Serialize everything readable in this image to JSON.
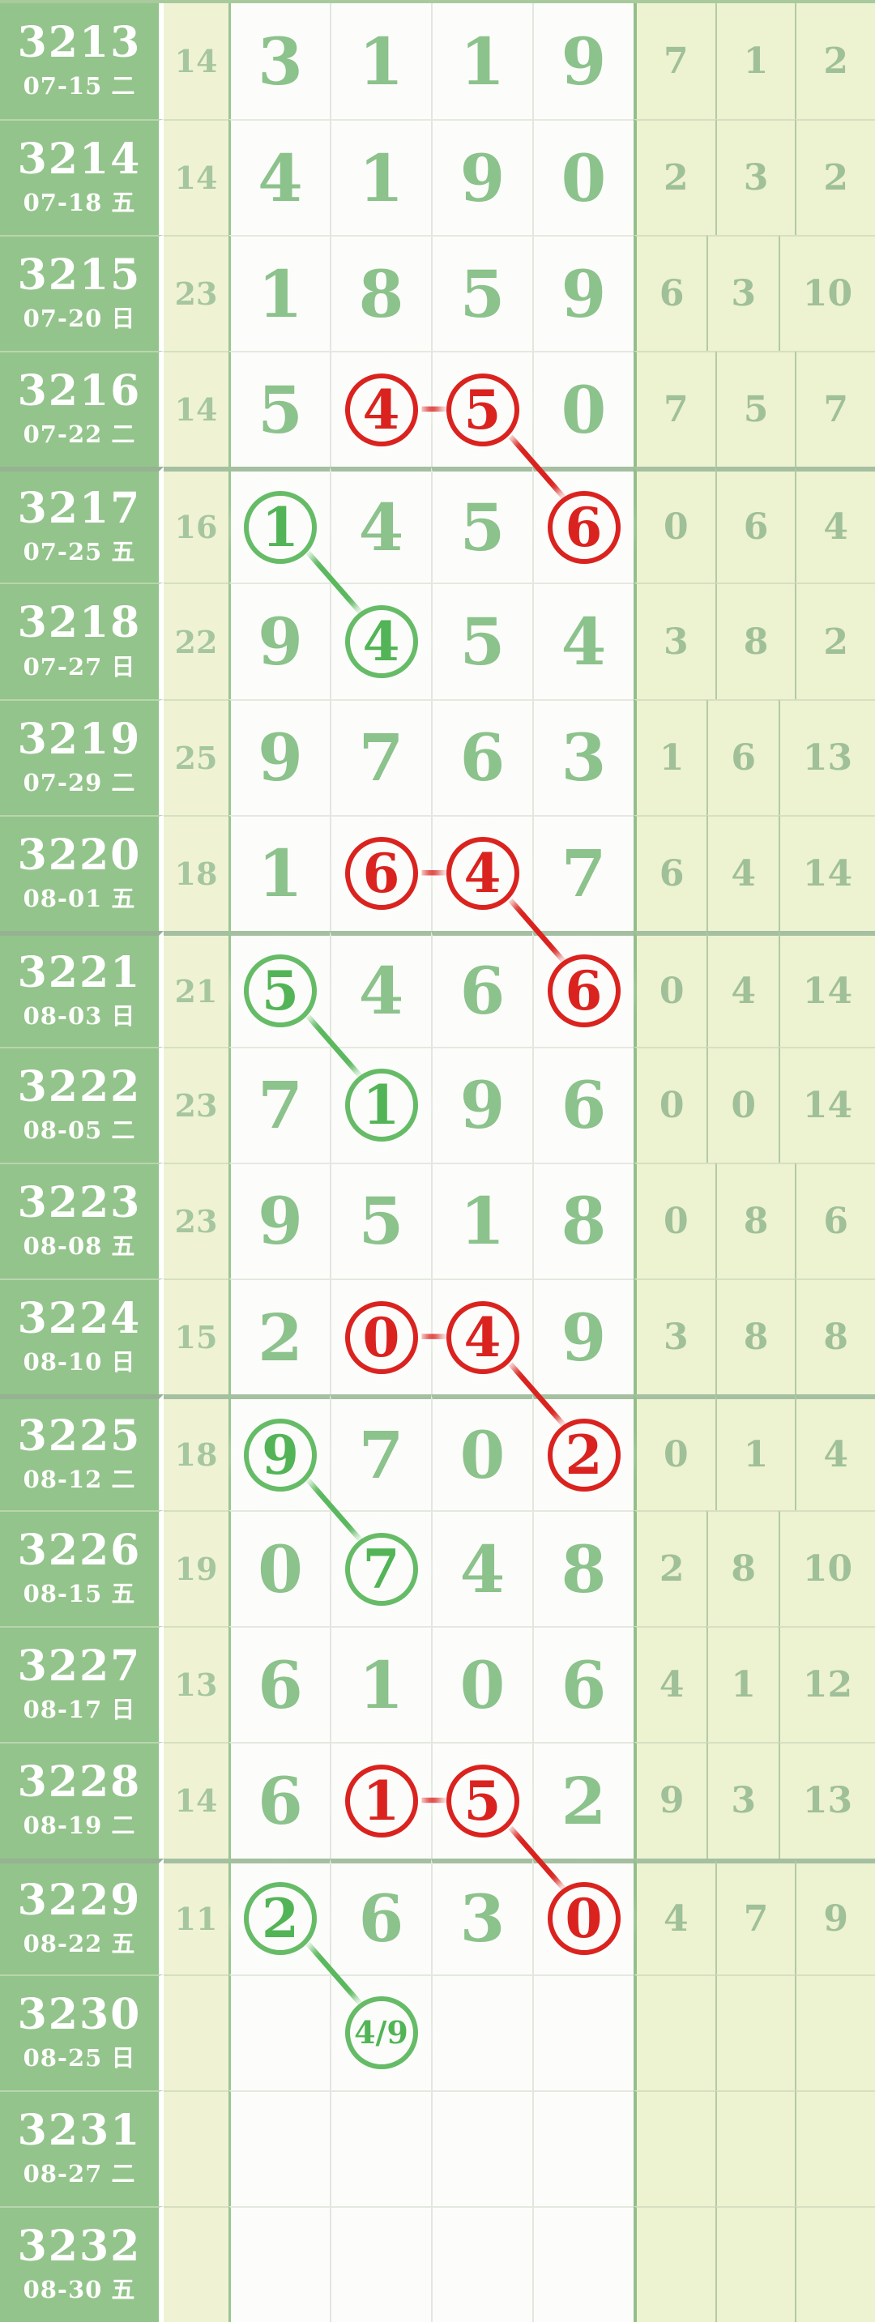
{
  "colors": {
    "label_bg": "#93c48b",
    "band_bg": "#eff3d3",
    "cell_bg": "#fcfdfb",
    "digit_green": "#8cc28b",
    "circle_digit_green": "#52b456",
    "stat_green": "#9fc098",
    "sum_green": "#a6c6a0",
    "red": "#da231f",
    "line_green": "#5cb85e",
    "label_text": "#ffffff"
  },
  "chart_data": {
    "type": "table",
    "columns": [
      "issue",
      "date",
      "sum",
      "digit1",
      "digit2",
      "digit3",
      "digit4",
      "stat1",
      "stat2",
      "stat3"
    ],
    "rows": [
      {
        "issue": "3213",
        "date": "07-15 二",
        "sum": "14",
        "digits": [
          "3",
          "1",
          "1",
          "9"
        ],
        "circles": [
          null,
          null,
          null,
          null
        ],
        "right": [
          "7",
          "1",
          "2"
        ]
      },
      {
        "issue": "3214",
        "date": "07-18 五",
        "sum": "14",
        "digits": [
          "4",
          "1",
          "9",
          "0"
        ],
        "circles": [
          null,
          null,
          null,
          null
        ],
        "right": [
          "2",
          "3",
          "2"
        ]
      },
      {
        "issue": "3215",
        "date": "07-20 日",
        "sum": "23",
        "digits": [
          "1",
          "8",
          "5",
          "9"
        ],
        "circles": [
          null,
          null,
          null,
          null
        ],
        "right": [
          "6",
          "3",
          "10"
        ]
      },
      {
        "issue": "3216",
        "date": "07-22 二",
        "sum": "14",
        "digits": [
          "5",
          "4",
          "5",
          "0"
        ],
        "circles": [
          null,
          "red",
          "red",
          null
        ],
        "right": [
          "7",
          "5",
          "7"
        ]
      },
      {
        "issue": "3217",
        "date": "07-25 五",
        "sum": "16",
        "digits": [
          "1",
          "4",
          "5",
          "6"
        ],
        "circles": [
          "green",
          null,
          null,
          "red"
        ],
        "right": [
          "0",
          "6",
          "4"
        ]
      },
      {
        "issue": "3218",
        "date": "07-27 日",
        "sum": "22",
        "digits": [
          "9",
          "4",
          "5",
          "4"
        ],
        "circles": [
          null,
          "green",
          null,
          null
        ],
        "right": [
          "3",
          "8",
          "2"
        ]
      },
      {
        "issue": "3219",
        "date": "07-29 二",
        "sum": "25",
        "digits": [
          "9",
          "7",
          "6",
          "3"
        ],
        "circles": [
          null,
          null,
          null,
          null
        ],
        "right": [
          "1",
          "6",
          "13"
        ]
      },
      {
        "issue": "3220",
        "date": "08-01 五",
        "sum": "18",
        "digits": [
          "1",
          "6",
          "4",
          "7"
        ],
        "circles": [
          null,
          "red",
          "red",
          null
        ],
        "right": [
          "6",
          "4",
          "14"
        ]
      },
      {
        "issue": "3221",
        "date": "08-03 日",
        "sum": "21",
        "digits": [
          "5",
          "4",
          "6",
          "6"
        ],
        "circles": [
          "green",
          null,
          null,
          "red"
        ],
        "right": [
          "0",
          "4",
          "14"
        ]
      },
      {
        "issue": "3222",
        "date": "08-05 二",
        "sum": "23",
        "digits": [
          "7",
          "1",
          "9",
          "6"
        ],
        "circles": [
          null,
          "green",
          null,
          null
        ],
        "right": [
          "0",
          "0",
          "14"
        ]
      },
      {
        "issue": "3223",
        "date": "08-08 五",
        "sum": "23",
        "digits": [
          "9",
          "5",
          "1",
          "8"
        ],
        "circles": [
          null,
          null,
          null,
          null
        ],
        "right": [
          "0",
          "8",
          "6"
        ]
      },
      {
        "issue": "3224",
        "date": "08-10 日",
        "sum": "15",
        "digits": [
          "2",
          "0",
          "4",
          "9"
        ],
        "circles": [
          null,
          "red",
          "red",
          null
        ],
        "right": [
          "3",
          "8",
          "8"
        ]
      },
      {
        "issue": "3225",
        "date": "08-12 二",
        "sum": "18",
        "digits": [
          "9",
          "7",
          "0",
          "2"
        ],
        "circles": [
          "green",
          null,
          null,
          "red"
        ],
        "right": [
          "0",
          "1",
          "4"
        ]
      },
      {
        "issue": "3226",
        "date": "08-15 五",
        "sum": "19",
        "digits": [
          "0",
          "7",
          "4",
          "8"
        ],
        "circles": [
          null,
          "green",
          null,
          null
        ],
        "right": [
          "2",
          "8",
          "10"
        ]
      },
      {
        "issue": "3227",
        "date": "08-17 日",
        "sum": "13",
        "digits": [
          "6",
          "1",
          "0",
          "6"
        ],
        "circles": [
          null,
          null,
          null,
          null
        ],
        "right": [
          "4",
          "1",
          "12"
        ]
      },
      {
        "issue": "3228",
        "date": "08-19 二",
        "sum": "14",
        "digits": [
          "6",
          "1",
          "5",
          "2"
        ],
        "circles": [
          null,
          "red",
          "red",
          null
        ],
        "right": [
          "9",
          "3",
          "13"
        ]
      },
      {
        "issue": "3229",
        "date": "08-22 五",
        "sum": "11",
        "digits": [
          "2",
          "6",
          "3",
          "0"
        ],
        "circles": [
          "green",
          null,
          null,
          "red"
        ],
        "right": [
          "4",
          "7",
          "9"
        ]
      },
      {
        "issue": "3230",
        "date": "08-25 日",
        "sum": "",
        "digits": [
          "",
          "4/9",
          "",
          ""
        ],
        "circles": [
          null,
          "green",
          null,
          null
        ],
        "right": [
          "",
          "",
          ""
        ]
      },
      {
        "issue": "3231",
        "date": "08-27 二",
        "sum": "",
        "digits": [
          "",
          "",
          "",
          ""
        ],
        "circles": [
          null,
          null,
          null,
          null
        ],
        "right": [
          "",
          "",
          ""
        ]
      },
      {
        "issue": "3232",
        "date": "08-30 五",
        "sum": "",
        "digits": [
          "",
          "",
          "",
          ""
        ],
        "circles": [
          null,
          null,
          null,
          null
        ],
        "right": [
          "",
          "",
          ""
        ]
      }
    ],
    "group_start_rows": [
      4,
      8,
      12,
      16
    ],
    "connections": [
      {
        "from": [
          3,
          1
        ],
        "to": [
          3,
          2
        ],
        "color": "red"
      },
      {
        "from": [
          3,
          2
        ],
        "to": [
          4,
          3
        ],
        "color": "red"
      },
      {
        "from": [
          4,
          0
        ],
        "to": [
          5,
          1
        ],
        "color": "green"
      },
      {
        "from": [
          7,
          1
        ],
        "to": [
          7,
          2
        ],
        "color": "red"
      },
      {
        "from": [
          7,
          2
        ],
        "to": [
          8,
          3
        ],
        "color": "red"
      },
      {
        "from": [
          8,
          0
        ],
        "to": [
          9,
          1
        ],
        "color": "green"
      },
      {
        "from": [
          11,
          1
        ],
        "to": [
          11,
          2
        ],
        "color": "red"
      },
      {
        "from": [
          11,
          2
        ],
        "to": [
          12,
          3
        ],
        "color": "red"
      },
      {
        "from": [
          12,
          0
        ],
        "to": [
          13,
          1
        ],
        "color": "green"
      },
      {
        "from": [
          15,
          1
        ],
        "to": [
          15,
          2
        ],
        "color": "red"
      },
      {
        "from": [
          15,
          2
        ],
        "to": [
          16,
          3
        ],
        "color": "red"
      },
      {
        "from": [
          16,
          0
        ],
        "to": [
          17,
          1
        ],
        "color": "green"
      }
    ]
  }
}
